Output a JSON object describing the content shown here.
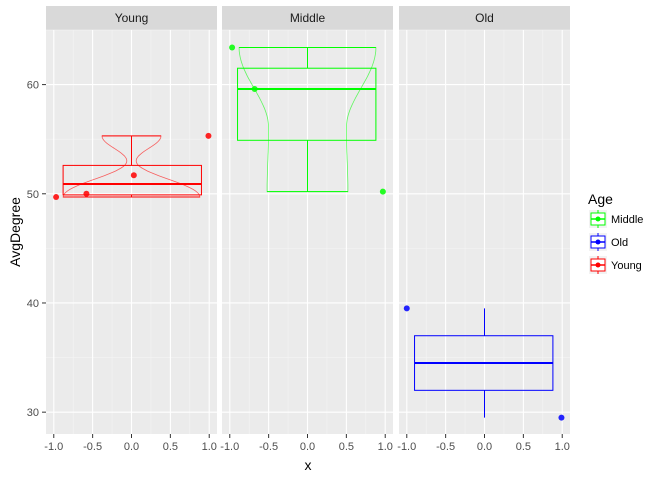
{
  "chart_data": {
    "type": "boxplot",
    "facets": [
      "Young",
      "Middle",
      "Old"
    ],
    "xlabel": "x",
    "ylabel": "AvgDegree",
    "xlim": [
      -1.1,
      1.1
    ],
    "ylim": [
      28,
      65
    ],
    "x_ticks": [
      -1.0,
      -0.5,
      0.0,
      0.5,
      1.0
    ],
    "x_tick_labels": [
      "-1.0",
      "-0.5",
      "0.0",
      "0.5",
      "1.0"
    ],
    "y_ticks": [
      30,
      40,
      50,
      60
    ],
    "y_tick_labels": [
      "30",
      "40",
      "50",
      "60"
    ],
    "legend": {
      "title": "Age",
      "entries": [
        "Middle",
        "Old",
        "Young"
      ],
      "position": "right"
    },
    "grid": true,
    "series": [
      {
        "name": "Young",
        "color": "#ff0000",
        "box": {
          "xmin": -0.88,
          "xmax": 0.9,
          "q1": 49.9,
          "median": 50.9,
          "q3": 52.6,
          "wlo": 49.7,
          "whi": 55.3,
          "cap_halfwidth": 0.0
        },
        "violin": {
          "xmin": -0.88,
          "xmax": 0.9,
          "ymin": 49.7,
          "ymax": 55.3,
          "neck_y": 53.0,
          "neck_halfwidth": 0.06,
          "top_halfwidth": 0.38,
          "bottom_halfwidth": 0.88
        },
        "points": [
          {
            "x": -0.97,
            "y": 49.7
          },
          {
            "x": -0.58,
            "y": 50.0
          },
          {
            "x": 0.03,
            "y": 51.7
          },
          {
            "x": 0.99,
            "y": 55.3
          }
        ],
        "has_violin": true
      },
      {
        "name": "Middle",
        "color": "#00ff00",
        "box": {
          "xmin": -0.9,
          "xmax": 0.88,
          "q1": 54.9,
          "median": 59.6,
          "q3": 61.5,
          "wlo": 50.2,
          "whi": 63.4
        },
        "violin": {
          "xmin": -0.9,
          "xmax": 0.9,
          "ymin": 50.2,
          "ymax": 63.4,
          "neck_y": 56.0,
          "neck_halfwidth": 0.5,
          "top_halfwidth": 0.88,
          "bottom_halfwidth": 0.52
        },
        "points": [
          {
            "x": -0.97,
            "y": 63.4
          },
          {
            "x": -0.68,
            "y": 59.6
          },
          {
            "x": 0.97,
            "y": 50.2
          }
        ],
        "has_violin": true
      },
      {
        "name": "Old",
        "color": "#0000ff",
        "box": {
          "xmin": -0.9,
          "xmax": 0.88,
          "q1": 32.0,
          "median": 34.5,
          "q3": 37.0,
          "wlo": 29.5,
          "whi": 39.5
        },
        "points": [
          {
            "x": -1.0,
            "y": 39.5
          },
          {
            "x": 0.99,
            "y": 29.5
          }
        ],
        "has_violin": false
      }
    ]
  }
}
